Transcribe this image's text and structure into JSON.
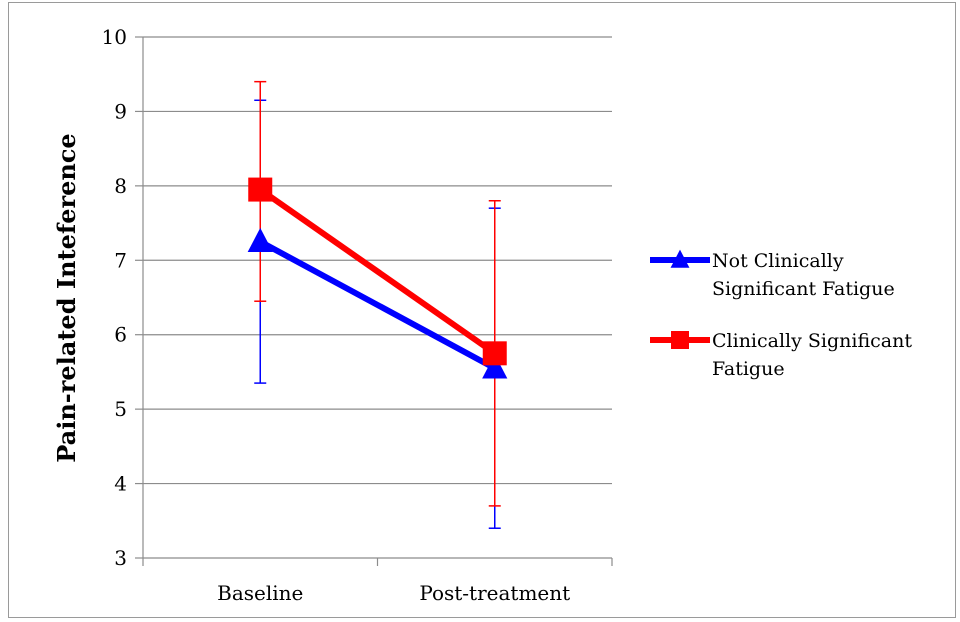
{
  "chart_data": {
    "type": "line",
    "title": "",
    "xlabel": "",
    "ylabel": "Pain-related Inteference",
    "ylim": [
      3,
      10
    ],
    "yticks": [
      3,
      4,
      5,
      6,
      7,
      8,
      9,
      10
    ],
    "categories": [
      "Baseline",
      "Post-treatment"
    ],
    "grid": true,
    "legend_position": "right",
    "series": [
      {
        "name_lines": [
          "Not Clinically",
          "Significant Fatigue"
        ],
        "color": "#0000ff",
        "marker": "triangle",
        "values": [
          7.25,
          5.55
        ],
        "error_low": [
          5.35,
          3.4
        ],
        "error_high": [
          9.15,
          7.7
        ]
      },
      {
        "name_lines": [
          "Clinically Significant",
          "Fatigue"
        ],
        "color": "#ff0000",
        "marker": "square",
        "values": [
          7.95,
          5.75
        ],
        "error_low": [
          6.45,
          3.7
        ],
        "error_high": [
          9.4,
          7.8
        ]
      }
    ]
  }
}
